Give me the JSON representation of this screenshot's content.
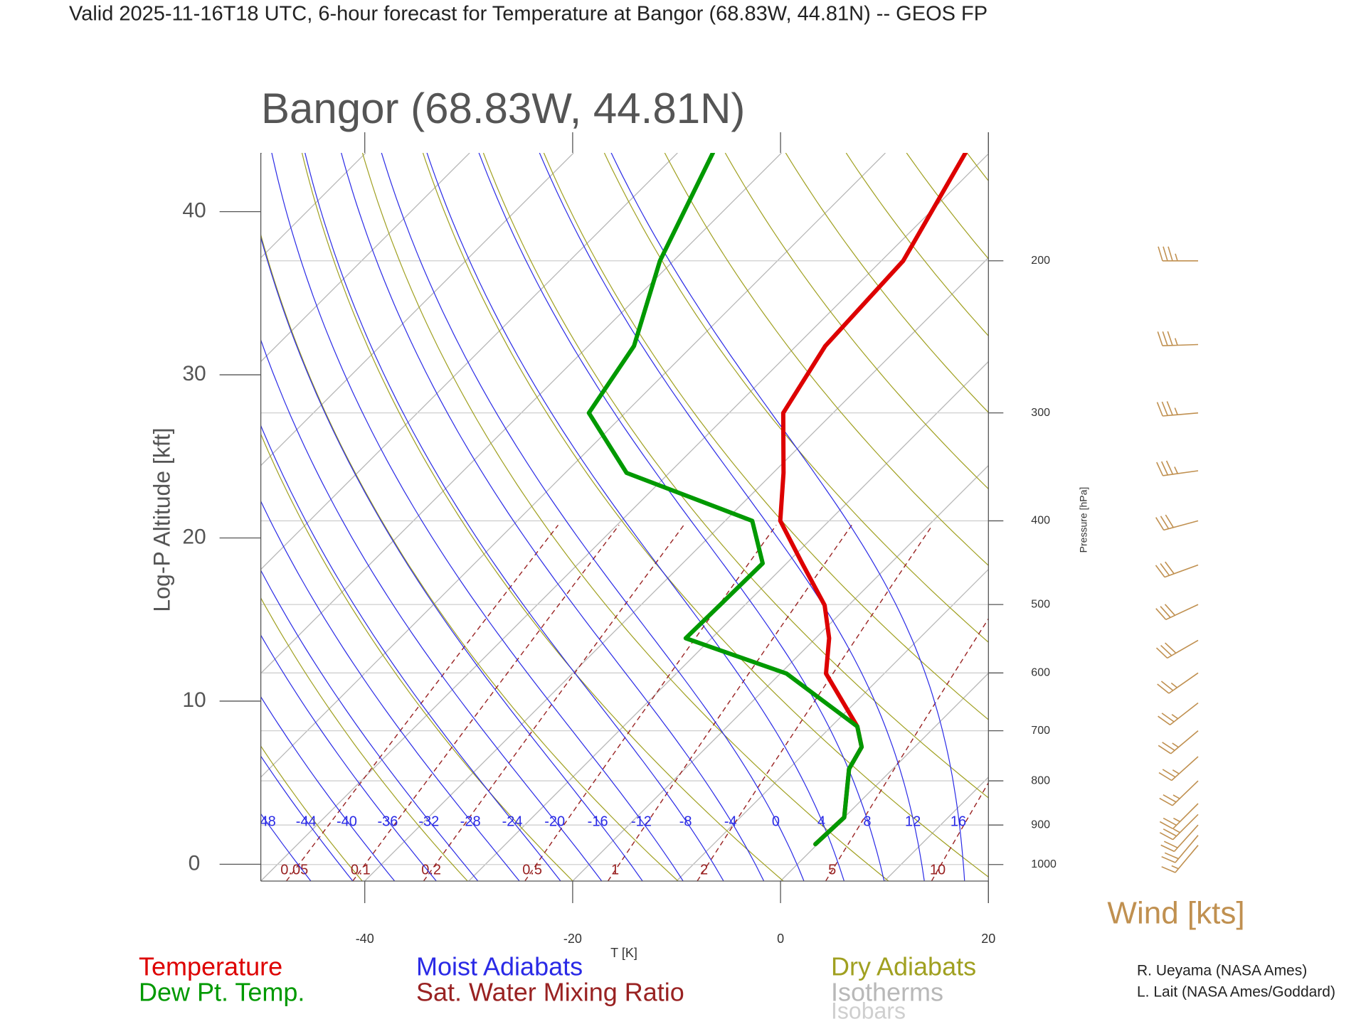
{
  "chart_data": {
    "type": "skewt",
    "subtitle": "Valid 2025-11-16T18 UTC, 6-hour forecast for Temperature at Bangor (68.83W, 44.81N) -- GEOS FP",
    "title": "Bangor (68.83W, 44.81N)",
    "xlabel": "T [K]",
    "ylabel": "Log-P Altitude [kft]",
    "y2label": "Pressure [hPa]",
    "xlim": [
      -50,
      20
    ],
    "xticks": [
      -40,
      -20,
      0,
      20
    ],
    "ylim": [
      -1.03,
      43.6
    ],
    "yticks": [
      0,
      10,
      20,
      30,
      40
    ],
    "y2lim": [
      1045,
      150
    ],
    "y2log": true,
    "y2ticks": [
      1000,
      900,
      800,
      700,
      600,
      500,
      400,
      300,
      200
    ],
    "pressure": [
      947,
      882,
      775,
      731,
      692,
      601,
      547,
      501,
      448,
      400,
      352,
      300,
      251,
      200,
      150
    ],
    "series": [
      {
        "name": "Temperature",
        "color": "#dd0000",
        "axis": "y2",
        "values": [
          -0.2,
          0.0,
          -4.2,
          -5.1,
          -7.5,
          -15.6,
          -18.7,
          -22.3,
          -28.5,
          -34.7,
          -39.0,
          -44.8,
          -47.2,
          -47.9,
          -52.3
        ]
      },
      {
        "name": "Dew Pt. Temp.",
        "color": "#009900",
        "axis": "y2",
        "values": [
          -0.2,
          0.0,
          -4.2,
          -5.1,
          -7.5,
          -19.4,
          -32.5,
          -32.4,
          -32.3,
          -37.4,
          -54.1,
          -63.5,
          -65.6,
          -71.3,
          -76.6
        ]
      }
    ],
    "reference_lines": [
      {
        "name": "Moist Adiabats",
        "color": "#2a2ae6",
        "labels": [
          -48,
          -44,
          -40,
          -36,
          -32,
          -28,
          -24,
          -20,
          -16,
          -12,
          -8,
          -4,
          0,
          4,
          8,
          12,
          16
        ]
      },
      {
        "name": "Sat. Water Mixing Ratio",
        "color": "#992222",
        "labels": [
          0.05,
          0.1,
          0.2,
          0.5,
          1,
          2,
          5,
          10
        ]
      },
      {
        "name": "Dry Adiabats",
        "color": "#a0a020"
      },
      {
        "name": "Isotherms",
        "color": "#b8b8b8"
      },
      {
        "name": "Isobars",
        "color": "#cfcfcf"
      }
    ],
    "wind": {
      "title": "Wind [kts]",
      "color": "#c09050",
      "pressure": [
        200,
        250,
        300,
        350,
        400,
        450,
        500,
        550,
        600,
        650,
        700,
        750,
        800,
        850,
        875,
        900,
        925,
        950
      ],
      "direction": [
        270,
        268,
        265,
        262,
        255,
        250,
        245,
        240,
        235,
        232,
        230,
        228,
        226,
        225,
        225,
        222,
        220,
        220
      ],
      "speed": [
        35,
        35,
        35,
        35,
        30,
        30,
        30,
        30,
        25,
        25,
        25,
        25,
        25,
        25,
        25,
        20,
        20,
        15
      ]
    },
    "credits": [
      "R. Ueyama (NASA Ames)",
      "L. Lait (NASA Ames/Goddard)"
    ]
  }
}
